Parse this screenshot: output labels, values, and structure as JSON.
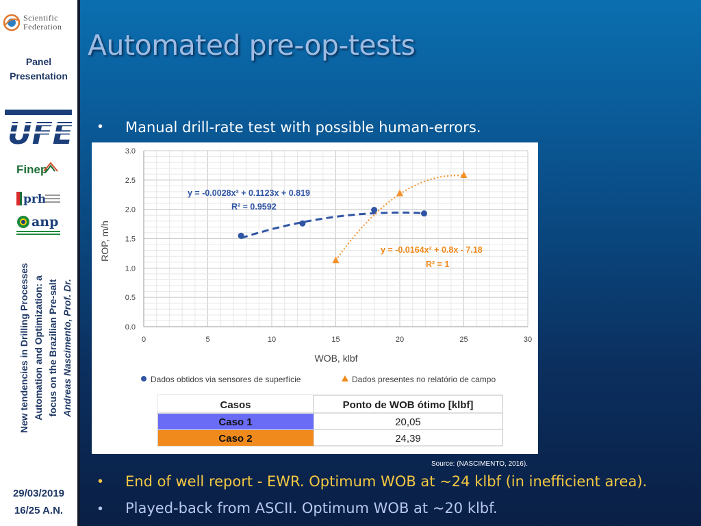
{
  "sidebar": {
    "logo_text_1": "Scientific",
    "logo_text_2": "Federation",
    "panel_label_1": "Panel",
    "panel_label_2": "Presentation",
    "finep": "Finep",
    "prh": "prh",
    "anp": "anp",
    "vertical_line_1": "New tendencies in Drilling Processes",
    "vertical_line_2": "Automation and Optimization: a",
    "vertical_line_3": "focus on the Brazilian Pre-salt",
    "vertical_line_4": "Andreas Nascimento, Prof. Dr.",
    "date": "29/03/2019",
    "page": "16/25  A.N."
  },
  "slide": {
    "title": "Automated pre-op-tests",
    "bullet_1": "Manual drill-rate test with possible human-errors.",
    "bullet_2": "End of well report - EWR. Optimum WOB at ~24 klbf (in inefficient area).",
    "bullet_3": "Played-back from ASCII. Optimum WOB at ~20 klbf.",
    "source": "Source: (NASCIMENTO, 2016)."
  },
  "colors": {
    "series1": "#2f55a4",
    "series2": "#f4912a",
    "caso1": "#6a6cf5",
    "caso2": "#f08a1c"
  },
  "chart_data": {
    "type": "scatter",
    "xlabel": "WOB, klbf",
    "ylabel": "ROP, m/h",
    "xlim": [
      0,
      30
    ],
    "ylim": [
      0,
      3
    ],
    "xticks": [
      "0",
      "5",
      "10",
      "15",
      "20",
      "25",
      "30"
    ],
    "yticks": [
      "0.0",
      "0.5",
      "1.0",
      "1.5",
      "2.0",
      "2.5",
      "3.0"
    ],
    "grid": true,
    "legend_position": "bottom",
    "series": [
      {
        "name": "Dados obtidos via sensores de superfície",
        "marker": "circle",
        "x": [
          7.6,
          12.4,
          18.0,
          21.9
        ],
        "y": [
          1.55,
          1.76,
          1.99,
          1.93
        ],
        "trendline": "y = -0.0028x² + 0.1123x + 0.819",
        "r2": "R² = 0.9592"
      },
      {
        "name": "Dados presentes no relatório de campo",
        "marker": "triangle",
        "x": [
          15,
          20,
          25
        ],
        "y": [
          1.13,
          2.27,
          2.58
        ],
        "trendline": "y = -0.0164x² + 0.8x - 7.18",
        "r2": "R² = 1"
      }
    ],
    "table": {
      "headers": [
        "Casos",
        "Ponto de WOB ótimo [klbf]"
      ],
      "rows": [
        [
          "Caso 1",
          "20,05"
        ],
        [
          "Caso 2",
          "24,39"
        ]
      ]
    }
  }
}
